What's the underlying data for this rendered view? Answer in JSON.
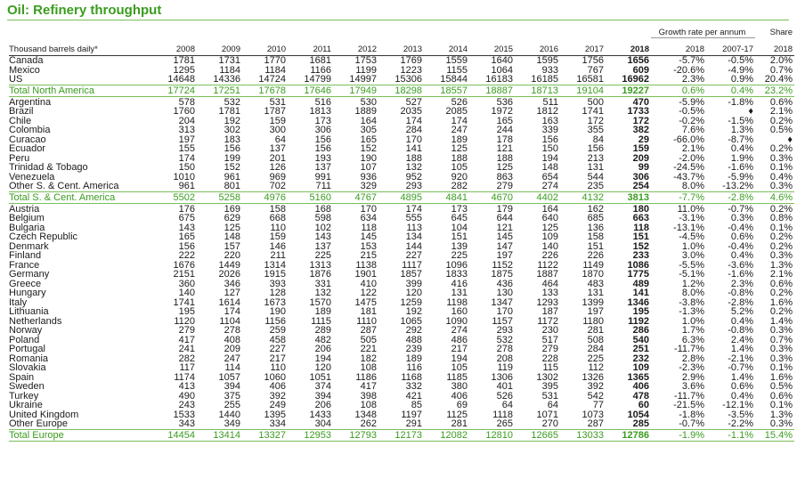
{
  "title": "Oil: Refinery throughput",
  "header": {
    "unit_label": "Thousand barrels daily*",
    "years": [
      "2008",
      "2009",
      "2010",
      "2011",
      "2012",
      "2013",
      "2014",
      "2015",
      "2016",
      "2017",
      "2018"
    ],
    "growth_label": "Growth rate per annum",
    "growth_cols": [
      "2018",
      "2007-17"
    ],
    "share_label_1": "Share",
    "share_label_2": "2018"
  },
  "rows": [
    {
      "name": "Canada",
      "v": [
        "1781",
        "1731",
        "1770",
        "1681",
        "1753",
        "1769",
        "1559",
        "1640",
        "1595",
        "1756",
        "1656"
      ],
      "g1": "-5.7%",
      "g2": "-0.5%",
      "s": "2.0%",
      "first": false,
      "total": false
    },
    {
      "name": "Mexico",
      "v": [
        "1295",
        "1184",
        "1184",
        "1166",
        "1199",
        "1223",
        "1155",
        "1064",
        "933",
        "767",
        "609"
      ],
      "g1": "-20.6%",
      "g2": "-4.9%",
      "s": "0.7%"
    },
    {
      "name": "US",
      "v": [
        "14648",
        "14336",
        "14724",
        "14799",
        "14997",
        "15306",
        "15844",
        "16183",
        "16185",
        "16581",
        "16962"
      ],
      "g1": "2.3%",
      "g2": "0.9%",
      "s": "20.4%"
    },
    {
      "name": "Total North America",
      "v": [
        "17724",
        "17251",
        "17678",
        "17646",
        "17949",
        "18298",
        "18557",
        "18887",
        "18713",
        "19104",
        "19227"
      ],
      "g1": "0.6%",
      "g2": "0.4%",
      "s": "23.2%",
      "total": true
    },
    {
      "name": "Argentina",
      "v": [
        "578",
        "532",
        "531",
        "516",
        "530",
        "527",
        "526",
        "536",
        "511",
        "500",
        "470"
      ],
      "g1": "-5.9%",
      "g2": "-1.8%",
      "s": "0.6%",
      "first": true
    },
    {
      "name": "Brazil",
      "v": [
        "1760",
        "1781",
        "1787",
        "1813",
        "1889",
        "2035",
        "2085",
        "1972",
        "1812",
        "1741",
        "1733"
      ],
      "g1": "-0.5%",
      "g2": "♦",
      "s": "2.1%"
    },
    {
      "name": "Chile",
      "v": [
        "204",
        "192",
        "159",
        "173",
        "164",
        "174",
        "174",
        "165",
        "163",
        "172",
        "172"
      ],
      "g1": "-0.2%",
      "g2": "-1.5%",
      "s": "0.2%"
    },
    {
      "name": "Colombia",
      "v": [
        "313",
        "302",
        "300",
        "306",
        "305",
        "284",
        "247",
        "244",
        "339",
        "355",
        "382"
      ],
      "g1": "7.6%",
      "g2": "1.3%",
      "s": "0.5%"
    },
    {
      "name": "Curacao",
      "v": [
        "197",
        "183",
        "64",
        "156",
        "165",
        "170",
        "189",
        "178",
        "156",
        "84",
        "29"
      ],
      "g1": "-66.0%",
      "g2": "-8.7%",
      "s": "♦"
    },
    {
      "name": "Ecuador",
      "v": [
        "155",
        "156",
        "137",
        "156",
        "152",
        "141",
        "125",
        "121",
        "150",
        "156",
        "159"
      ],
      "g1": "2.1%",
      "g2": "0.4%",
      "s": "0.2%"
    },
    {
      "name": "Peru",
      "v": [
        "174",
        "199",
        "201",
        "193",
        "190",
        "188",
        "188",
        "188",
        "194",
        "213",
        "209"
      ],
      "g1": "-2.0%",
      "g2": "1.9%",
      "s": "0.3%"
    },
    {
      "name": "Trinidad & Tobago",
      "v": [
        "150",
        "152",
        "126",
        "137",
        "107",
        "132",
        "105",
        "125",
        "148",
        "131",
        "99"
      ],
      "g1": "-24.5%",
      "g2": "-1.6%",
      "s": "0.1%"
    },
    {
      "name": "Venezuela",
      "v": [
        "1010",
        "961",
        "969",
        "991",
        "936",
        "952",
        "920",
        "863",
        "654",
        "544",
        "306"
      ],
      "g1": "-43.7%",
      "g2": "-5.9%",
      "s": "0.4%"
    },
    {
      "name": "Other S. & Cent. America",
      "v": [
        "961",
        "801",
        "702",
        "711",
        "329",
        "293",
        "282",
        "279",
        "274",
        "235",
        "254"
      ],
      "g1": "8.0%",
      "g2": "-13.2%",
      "s": "0.3%"
    },
    {
      "name": "Total S. & Cent. America",
      "v": [
        "5502",
        "5258",
        "4976",
        "5160",
        "4767",
        "4895",
        "4841",
        "4670",
        "4402",
        "4132",
        "3813"
      ],
      "g1": "-7.7%",
      "g2": "-2.8%",
      "s": "4.6%",
      "total": true
    },
    {
      "name": "Austria",
      "v": [
        "176",
        "169",
        "158",
        "168",
        "170",
        "174",
        "173",
        "179",
        "164",
        "162",
        "180"
      ],
      "g1": "11.0%",
      "g2": "-0.7%",
      "s": "0.2%",
      "first": true
    },
    {
      "name": "Belgium",
      "v": [
        "675",
        "629",
        "668",
        "598",
        "634",
        "555",
        "645",
        "644",
        "640",
        "685",
        "663"
      ],
      "g1": "-3.1%",
      "g2": "0.3%",
      "s": "0.8%"
    },
    {
      "name": "Bulgaria",
      "v": [
        "143",
        "125",
        "110",
        "102",
        "118",
        "113",
        "104",
        "121",
        "125",
        "136",
        "118"
      ],
      "g1": "-13.1%",
      "g2": "-0.4%",
      "s": "0.1%"
    },
    {
      "name": "Czech Republic",
      "v": [
        "165",
        "148",
        "159",
        "143",
        "145",
        "134",
        "151",
        "145",
        "109",
        "158",
        "151"
      ],
      "g1": "-4.5%",
      "g2": "0.6%",
      "s": "0.2%"
    },
    {
      "name": "Denmark",
      "v": [
        "156",
        "157",
        "146",
        "137",
        "153",
        "144",
        "139",
        "147",
        "140",
        "151",
        "152"
      ],
      "g1": "1.0%",
      "g2": "-0.4%",
      "s": "0.2%"
    },
    {
      "name": "Finland",
      "v": [
        "222",
        "220",
        "211",
        "225",
        "215",
        "227",
        "225",
        "197",
        "226",
        "226",
        "233"
      ],
      "g1": "3.0%",
      "g2": "0.4%",
      "s": "0.3%"
    },
    {
      "name": "France",
      "v": [
        "1676",
        "1449",
        "1314",
        "1313",
        "1138",
        "1117",
        "1096",
        "1152",
        "1122",
        "1149",
        "1086"
      ],
      "g1": "-5.5%",
      "g2": "-3.6%",
      "s": "1.3%"
    },
    {
      "name": "Germany",
      "v": [
        "2151",
        "2026",
        "1915",
        "1876",
        "1901",
        "1857",
        "1833",
        "1875",
        "1887",
        "1870",
        "1775"
      ],
      "g1": "-5.1%",
      "g2": "-1.6%",
      "s": "2.1%"
    },
    {
      "name": "Greece",
      "v": [
        "360",
        "346",
        "393",
        "331",
        "410",
        "399",
        "416",
        "436",
        "464",
        "483",
        "489"
      ],
      "g1": "1.2%",
      "g2": "2.3%",
      "s": "0.6%"
    },
    {
      "name": "Hungary",
      "v": [
        "140",
        "127",
        "128",
        "132",
        "122",
        "120",
        "131",
        "130",
        "133",
        "131",
        "141"
      ],
      "g1": "8.0%",
      "g2": "-0.8%",
      "s": "0.2%"
    },
    {
      "name": "Italy",
      "v": [
        "1741",
        "1614",
        "1673",
        "1570",
        "1475",
        "1259",
        "1198",
        "1347",
        "1293",
        "1399",
        "1346"
      ],
      "g1": "-3.8%",
      "g2": "-2.8%",
      "s": "1.6%"
    },
    {
      "name": "Lithuania",
      "v": [
        "195",
        "174",
        "190",
        "189",
        "181",
        "192",
        "160",
        "170",
        "187",
        "197",
        "195"
      ],
      "g1": "-1.3%",
      "g2": "5.2%",
      "s": "0.2%"
    },
    {
      "name": "Netherlands",
      "v": [
        "1120",
        "1104",
        "1156",
        "1115",
        "1110",
        "1065",
        "1090",
        "1157",
        "1172",
        "1180",
        "1192"
      ],
      "g1": "1.0%",
      "g2": "0.4%",
      "s": "1.4%"
    },
    {
      "name": "Norway",
      "v": [
        "279",
        "278",
        "259",
        "289",
        "287",
        "292",
        "274",
        "293",
        "230",
        "281",
        "286"
      ],
      "g1": "1.7%",
      "g2": "-0.8%",
      "s": "0.3%"
    },
    {
      "name": "Poland",
      "v": [
        "417",
        "408",
        "458",
        "482",
        "505",
        "488",
        "486",
        "532",
        "517",
        "508",
        "540"
      ],
      "g1": "6.3%",
      "g2": "2.4%",
      "s": "0.7%"
    },
    {
      "name": "Portugal",
      "v": [
        "241",
        "209",
        "227",
        "206",
        "221",
        "239",
        "217",
        "278",
        "279",
        "284",
        "251"
      ],
      "g1": "-11.7%",
      "g2": "1.4%",
      "s": "0.3%"
    },
    {
      "name": "Romania",
      "v": [
        "282",
        "247",
        "217",
        "194",
        "182",
        "189",
        "194",
        "208",
        "228",
        "225",
        "232"
      ],
      "g1": "2.8%",
      "g2": "-2.1%",
      "s": "0.3%"
    },
    {
      "name": "Slovakia",
      "v": [
        "117",
        "114",
        "110",
        "120",
        "108",
        "116",
        "105",
        "119",
        "115",
        "112",
        "109"
      ],
      "g1": "-2.3%",
      "g2": "-0.7%",
      "s": "0.1%"
    },
    {
      "name": "Spain",
      "v": [
        "1174",
        "1057",
        "1060",
        "1051",
        "1186",
        "1168",
        "1185",
        "1306",
        "1302",
        "1326",
        "1365"
      ],
      "g1": "2.9%",
      "g2": "1.4%",
      "s": "1.6%"
    },
    {
      "name": "Sweden",
      "v": [
        "413",
        "394",
        "406",
        "374",
        "417",
        "332",
        "380",
        "401",
        "395",
        "392",
        "406"
      ],
      "g1": "3.6%",
      "g2": "0.6%",
      "s": "0.5%"
    },
    {
      "name": "Turkey",
      "v": [
        "490",
        "375",
        "392",
        "394",
        "398",
        "421",
        "406",
        "526",
        "531",
        "542",
        "478"
      ],
      "g1": "-11.7%",
      "g2": "0.4%",
      "s": "0.6%"
    },
    {
      "name": "Ukraine",
      "v": [
        "243",
        "255",
        "249",
        "206",
        "108",
        "85",
        "69",
        "64",
        "64",
        "77",
        "60"
      ],
      "g1": "-21.5%",
      "g2": "-12.1%",
      "s": "0.1%"
    },
    {
      "name": "United Kingdom",
      "v": [
        "1533",
        "1440",
        "1395",
        "1433",
        "1348",
        "1197",
        "1125",
        "1118",
        "1071",
        "1073",
        "1054"
      ],
      "g1": "-1.8%",
      "g2": "-3.5%",
      "s": "1.3%"
    },
    {
      "name": "Other Europe",
      "v": [
        "343",
        "349",
        "334",
        "304",
        "262",
        "291",
        "281",
        "265",
        "270",
        "287",
        "285"
      ],
      "g1": "-0.7%",
      "g2": "-2.2%",
      "s": "0.3%"
    },
    {
      "name": "Total Europe",
      "v": [
        "14454",
        "13414",
        "13327",
        "12953",
        "12793",
        "12173",
        "12082",
        "12810",
        "12665",
        "13033",
        "12786"
      ],
      "g1": "-1.9%",
      "g2": "-1.1%",
      "s": "15.4%",
      "total": true
    }
  ]
}
